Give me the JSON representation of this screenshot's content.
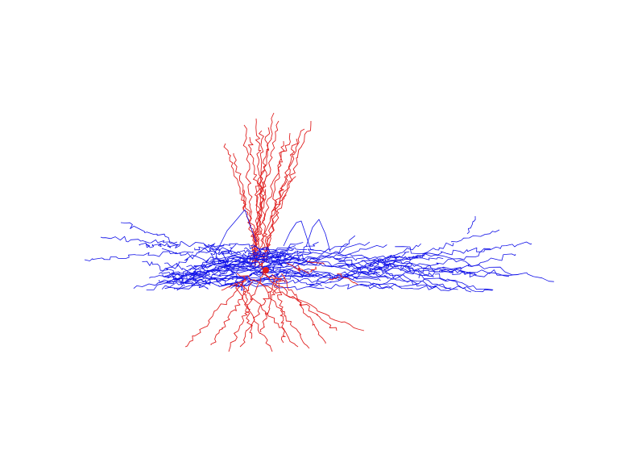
{
  "image": {
    "subject": "neuron-morphology-reconstruction",
    "background": "#ffffff",
    "colors": {
      "dendrite": "#e02020",
      "axon": "#1010e8"
    }
  }
}
